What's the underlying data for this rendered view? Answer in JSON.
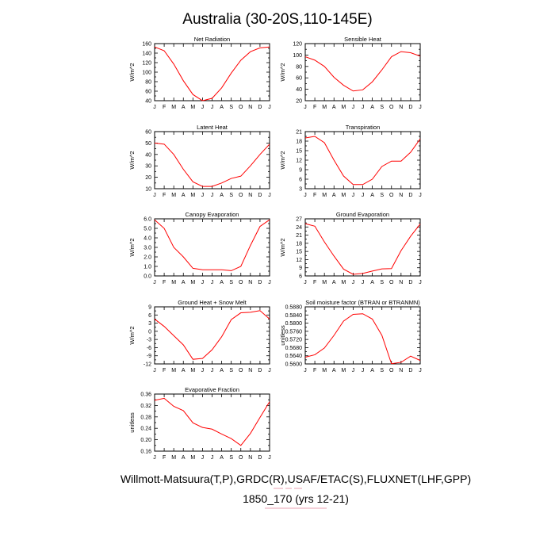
{
  "figure": {
    "title": "Australia (30-20S,110-145E)",
    "footer_line1": "Willmott-Matsuura(T,P),GRDC(R),USAF/ETAC(S),FLUXNET(LHF,GPP)",
    "footer_line2": "1850_170 (yrs 12-21)",
    "line_color": "#ff0000"
  },
  "chart_data": [
    {
      "type": "line",
      "title": "Net Radiation",
      "ylabel": "W/m^2",
      "x": [
        "J",
        "F",
        "M",
        "A",
        "M",
        "J",
        "J",
        "A",
        "S",
        "O",
        "N",
        "D",
        "J"
      ],
      "yticks": [
        "160",
        "140",
        "120",
        "100",
        "80",
        "60",
        "40"
      ],
      "ylim": [
        40,
        160
      ],
      "values": [
        153,
        145,
        117,
        82,
        53,
        40,
        45,
        67,
        98,
        125,
        143,
        151,
        153
      ],
      "grid": false
    },
    {
      "type": "line",
      "title": "Sensible Heat",
      "ylabel": "W/m^2",
      "x": [
        "J",
        "F",
        "M",
        "A",
        "M",
        "J",
        "J",
        "A",
        "S",
        "O",
        "N",
        "D",
        "J"
      ],
      "yticks": [
        "120",
        "100",
        "80",
        "60",
        "40",
        "20"
      ],
      "ylim": [
        20,
        120
      ],
      "values": [
        97,
        91,
        80,
        61,
        47,
        37,
        39,
        53,
        74,
        97,
        106,
        104,
        98
      ],
      "grid": false
    },
    {
      "type": "line",
      "title": "Latent Heat",
      "ylabel": "W/m^2",
      "x": [
        "J",
        "F",
        "M",
        "A",
        "M",
        "J",
        "J",
        "A",
        "S",
        "O",
        "N",
        "D",
        "J"
      ],
      "yticks": [
        "60",
        "50",
        "40",
        "30",
        "20",
        "10"
      ],
      "ylim": [
        10,
        60
      ],
      "values": [
        50,
        49,
        40,
        27,
        16,
        12,
        12,
        15,
        19,
        21,
        30,
        40,
        49
      ],
      "grid": false
    },
    {
      "type": "line",
      "title": "Transpiration",
      "ylabel": "W/m^2",
      "x": [
        "J",
        "F",
        "M",
        "A",
        "M",
        "J",
        "J",
        "A",
        "S",
        "O",
        "N",
        "D",
        "J"
      ],
      "yticks": [
        "21",
        "18",
        "15",
        "12",
        "9",
        "6",
        "3"
      ],
      "ylim": [
        3,
        21
      ],
      "values": [
        19,
        19.5,
        17.5,
        12,
        7,
        4.3,
        4.3,
        6,
        10,
        11.7,
        11.7,
        14.5,
        18.7
      ],
      "grid": false
    },
    {
      "type": "line",
      "title": "Canopy Evaporation",
      "ylabel": "W/m^2",
      "x": [
        "J",
        "F",
        "M",
        "A",
        "M",
        "J",
        "J",
        "A",
        "S",
        "O",
        "N",
        "D",
        "J"
      ],
      "yticks": [
        "6.0",
        "5.0",
        "4.0",
        "3.0",
        "2.0",
        "1.0",
        "0.0"
      ],
      "ylim": [
        0,
        6
      ],
      "values": [
        5.9,
        5.0,
        3.0,
        2.0,
        0.8,
        0.65,
        0.65,
        0.65,
        0.55,
        1.0,
        3.2,
        5.2,
        5.9
      ],
      "grid": false
    },
    {
      "type": "line",
      "title": "Ground Evaporation",
      "ylabel": "W/m^2",
      "x": [
        "J",
        "F",
        "M",
        "A",
        "M",
        "J",
        "J",
        "A",
        "S",
        "O",
        "N",
        "D",
        "J"
      ],
      "yticks": [
        "27",
        "24",
        "21",
        "18",
        "15",
        "12",
        "9",
        "6"
      ],
      "ylim": [
        6,
        27
      ],
      "values": [
        25.2,
        24.3,
        18.5,
        13.3,
        8.5,
        6.6,
        6.9,
        7.8,
        8.6,
        8.7,
        15.3,
        20.6,
        25.1
      ],
      "grid": false
    },
    {
      "type": "line",
      "title": "Ground Heat + Snow Melt",
      "ylabel": "W/m^2",
      "x": [
        "J",
        "F",
        "M",
        "A",
        "M",
        "J",
        "J",
        "A",
        "S",
        "O",
        "N",
        "D",
        "J"
      ],
      "yticks": [
        "9",
        "6",
        "3",
        "0",
        "-3",
        "-6",
        "-9",
        "-12"
      ],
      "ylim": [
        -12,
        9
      ],
      "values": [
        4.5,
        1.8,
        -1.6,
        -5,
        -10.3,
        -10,
        -6.8,
        -2,
        4.3,
        6.8,
        7,
        7.6,
        4.5
      ],
      "grid": false
    },
    {
      "type": "line",
      "title": "Soil moisture factor (BTRAN or BTRANMN)",
      "ylabel": "unitless",
      "x": [
        "J",
        "F",
        "M",
        "A",
        "M",
        "J",
        "J",
        "A",
        "S",
        "O",
        "N",
        "D",
        "J"
      ],
      "yticks": [
        "0.5880",
        "0.5840",
        "0.5800",
        "0.5760",
        "0.5720",
        "0.5680",
        "0.5640",
        "0.5600"
      ],
      "ylim": [
        0.56,
        0.588
      ],
      "values": [
        0.5633,
        0.5645,
        0.5678,
        0.574,
        0.581,
        0.5843,
        0.5846,
        0.582,
        0.574,
        0.5601,
        0.5608,
        0.5638,
        0.5617
      ],
      "grid": false
    },
    {
      "type": "line",
      "title": "Evaporative Fraction",
      "ylabel": "unitless",
      "x": [
        "J",
        "F",
        "M",
        "A",
        "M",
        "J",
        "J",
        "A",
        "S",
        "O",
        "N",
        "D",
        "J"
      ],
      "yticks": [
        "0.36",
        "0.32",
        "0.28",
        "0.24",
        "0.20",
        "0.16"
      ],
      "ylim": [
        0.16,
        0.36
      ],
      "values": [
        0.338,
        0.345,
        0.317,
        0.302,
        0.259,
        0.243,
        0.237,
        0.22,
        0.204,
        0.18,
        0.222,
        0.278,
        0.333
      ],
      "grid": false
    }
  ]
}
